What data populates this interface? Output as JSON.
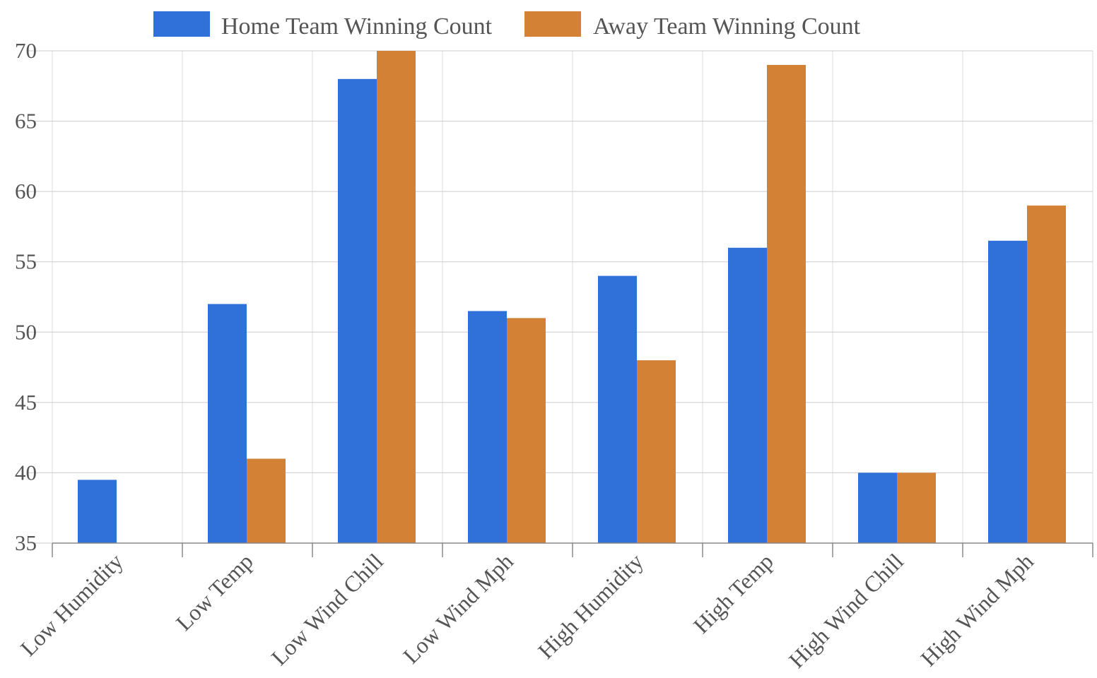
{
  "chart_data": {
    "type": "bar",
    "categories": [
      "Low Humidity",
      "Low Temp",
      "Low Wind Chill",
      "Low Wind Mph",
      "High Humidity",
      "High Temp",
      "High Wind Chill",
      "High Wind Mph"
    ],
    "series": [
      {
        "name": "Home Team Winning Count",
        "color": "#3070d9",
        "values": [
          39.5,
          52,
          68,
          51.5,
          54,
          56,
          40,
          56.5
        ]
      },
      {
        "name": "Away Team Winning Count",
        "color": "#d38135",
        "values": [
          35,
          41,
          70,
          51,
          48,
          69,
          40,
          59
        ]
      }
    ],
    "ylim": [
      35,
      70
    ],
    "yticks": [
      "35",
      "40",
      "45",
      "50",
      "55",
      "60",
      "65",
      "70"
    ],
    "grid": true,
    "legend_position": "top"
  }
}
